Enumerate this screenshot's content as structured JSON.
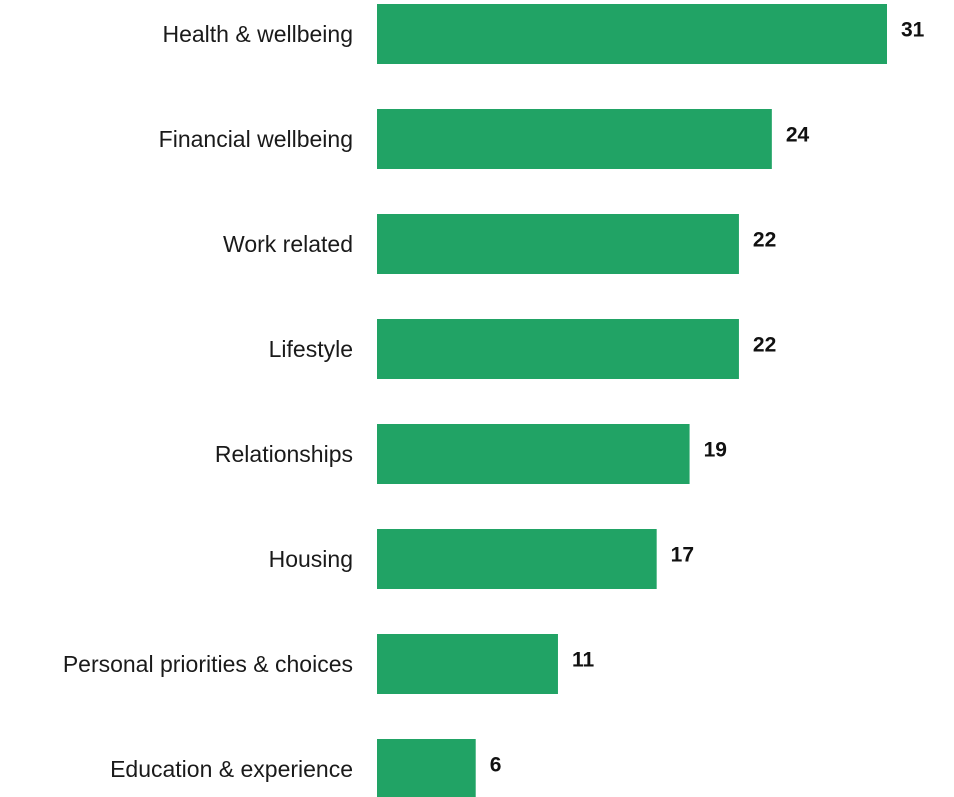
{
  "chart_data": {
    "type": "bar",
    "orientation": "horizontal",
    "categories": [
      "Health & wellbeing",
      "Financial wellbeing",
      "Work related",
      "Lifestyle",
      "Relationships",
      "Housing",
      "Personal priorities & choices",
      "Education & experience"
    ],
    "values": [
      31,
      24,
      22,
      22,
      19,
      17,
      11,
      6
    ],
    "xlim": [
      0,
      31
    ],
    "grid": false,
    "legend": "none",
    "bar_color": "#21a365"
  }
}
